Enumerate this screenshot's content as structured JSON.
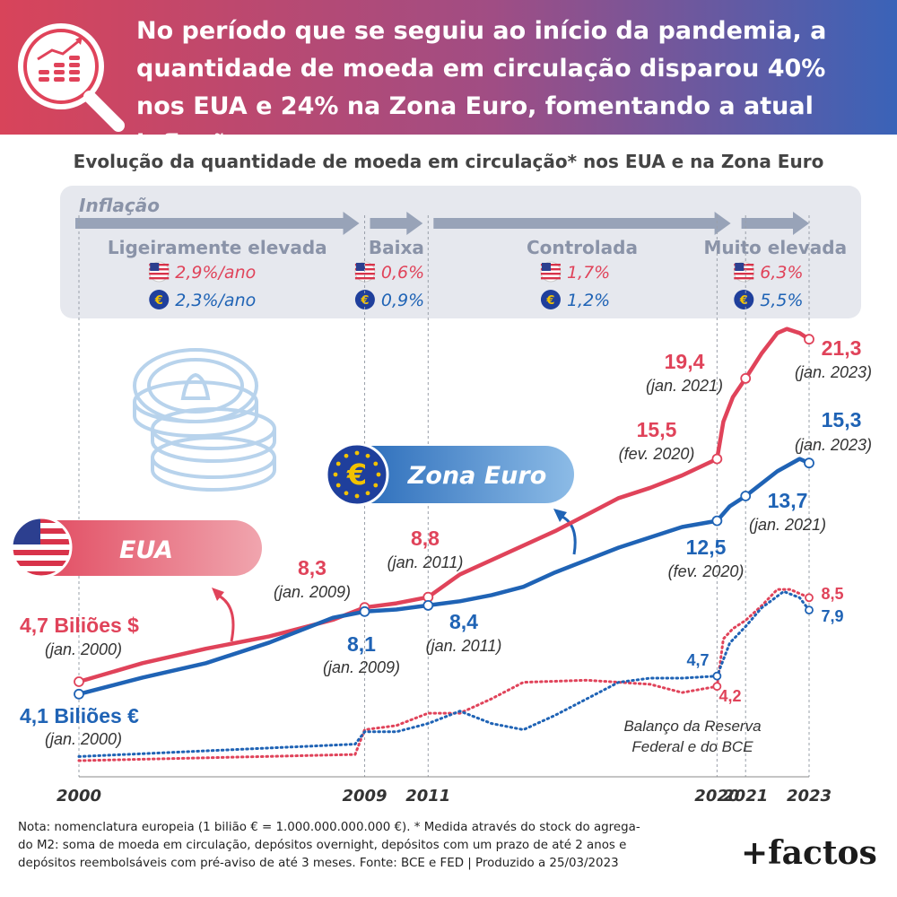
{
  "header": {
    "title": "No período que se seguiu ao início da pandemia, a quantidade de moeda em circulação disparou 40% nos EUA e 24% na Zona Euro, fomentando a atual inflação",
    "icon": "magnifier-chart-coins-icon"
  },
  "subtitle": "Evolução da quantidade de moeda em circulação* nos EUA e na Zona Euro",
  "inflation": {
    "title": "Inflação",
    "phases": [
      {
        "label": "Ligeiramente elevada",
        "us": "2,9%/ano",
        "eu": "2,3%/ano"
      },
      {
        "label": "Baixa",
        "us": "0,6%",
        "eu": "0,9%"
      },
      {
        "label": "Controlada",
        "us": "1,7%",
        "eu": "1,2%"
      },
      {
        "label": "Muito elevada",
        "us": "6,3%",
        "eu": "5,5%"
      }
    ]
  },
  "legend": {
    "us": "EUA",
    "eu": "Zona Euro"
  },
  "annotations": {
    "us_start_value": "4,7 Biliões $",
    "us_start_date": "(jan. 2000)",
    "eu_start_value": "4,1 Biliões €",
    "eu_start_date": "(jan. 2000)",
    "us_2009_value": "8,3",
    "us_2009_date": "(jan. 2009)",
    "eu_2009_value": "8,1",
    "eu_2009_date": "(jan. 2009)",
    "us_2011_value": "8,8",
    "us_2011_date": "(jan. 2011)",
    "eu_2011_value": "8,4",
    "eu_2011_date": "(jan. 2011)",
    "us_2020_value": "15,5",
    "us_2020_date": "(fev. 2020)",
    "eu_2020_value": "12,5",
    "eu_2020_date": "(fev. 2020)",
    "us_2021_value": "19,4",
    "us_2021_date": "(jan. 2021)",
    "eu_2021_value": "13,7",
    "eu_2021_date": "(jan. 2021)",
    "us_2023_value": "21,3",
    "us_2023_date": "(jan. 2023)",
    "eu_2023_value": "15,3",
    "eu_2023_date": "(jan. 2023)",
    "bal_us_2020": "4,2",
    "bal_eu_2020": "4,7",
    "bal_us_2023": "8,5",
    "bal_eu_2023": "7,9",
    "balance_label_1": "Balanço da Reserva",
    "balance_label_2": "Federal e do BCE"
  },
  "footnote_lines": [
    "Nota: nomenclatura europeia (1 bilião € = 1.000.000.000.000 €). * Medida através do stock do agrega-",
    "do M2: soma de moeda em circulação, depósitos overnight, depósitos com um prazo de até 2 anos e",
    "depósitos reembolsáveis com pré-aviso de até 3 meses. Fonte: BCE e FED | Produzido a 25/03/2023"
  ],
  "brand": "+factos",
  "colors": {
    "us": "#e0435a",
    "eu": "#1f63b5",
    "panel": "#e6e8ee",
    "arrow": "#98a3b8",
    "label": "#8a93a8"
  },
  "chart_data": {
    "type": "line",
    "title": "Evolução da quantidade de moeda em circulação* nos EUA e na Zona Euro",
    "x_ticks": [
      "2000",
      "2009",
      "2011",
      "2020",
      "2021",
      "2023"
    ],
    "series": [
      {
        "name": "EUA",
        "unit": "Biliões $",
        "points": [
          [
            2000.0,
            4.7
          ],
          [
            2002.0,
            5.6
          ],
          [
            2004.0,
            6.3
          ],
          [
            2006.0,
            6.9
          ],
          [
            2008.0,
            7.7
          ],
          [
            2009.0,
            8.3
          ],
          [
            2010.0,
            8.5
          ],
          [
            2011.0,
            8.8
          ],
          [
            2012.0,
            9.9
          ],
          [
            2013.0,
            10.6
          ],
          [
            2014.0,
            11.3
          ],
          [
            2015.0,
            12.0
          ],
          [
            2016.0,
            12.8
          ],
          [
            2017.0,
            13.6
          ],
          [
            2018.0,
            14.1
          ],
          [
            2019.0,
            14.7
          ],
          [
            2020.1,
            15.5
          ],
          [
            2020.3,
            17.3
          ],
          [
            2020.6,
            18.5
          ],
          [
            2021.0,
            19.4
          ],
          [
            2021.5,
            20.6
          ],
          [
            2022.0,
            21.6
          ],
          [
            2022.3,
            21.8
          ],
          [
            2022.7,
            21.6
          ],
          [
            2023.0,
            21.3
          ]
        ]
      },
      {
        "name": "Zona Euro",
        "unit": "Biliões €",
        "points": [
          [
            2000.0,
            4.1
          ],
          [
            2002.0,
            4.9
          ],
          [
            2004.0,
            5.6
          ],
          [
            2006.0,
            6.6
          ],
          [
            2008.0,
            7.8
          ],
          [
            2009.0,
            8.1
          ],
          [
            2010.0,
            8.2
          ],
          [
            2011.0,
            8.4
          ],
          [
            2012.0,
            8.6
          ],
          [
            2013.0,
            8.9
          ],
          [
            2014.0,
            9.3
          ],
          [
            2015.0,
            10.0
          ],
          [
            2016.0,
            10.6
          ],
          [
            2017.0,
            11.2
          ],
          [
            2018.0,
            11.7
          ],
          [
            2019.0,
            12.2
          ],
          [
            2020.1,
            12.5
          ],
          [
            2020.5,
            13.2
          ],
          [
            2021.0,
            13.7
          ],
          [
            2021.5,
            14.3
          ],
          [
            2022.0,
            14.9
          ],
          [
            2022.7,
            15.5
          ],
          [
            2023.0,
            15.3
          ]
        ]
      },
      {
        "name": "Balanço da Reserva Federal",
        "style": "dotted",
        "points": [
          [
            2000.0,
            0.6
          ],
          [
            2008.7,
            0.9
          ],
          [
            2009.0,
            2.1
          ],
          [
            2010.0,
            2.3
          ],
          [
            2011.0,
            2.9
          ],
          [
            2012.0,
            2.9
          ],
          [
            2013.0,
            3.6
          ],
          [
            2014.0,
            4.4
          ],
          [
            2016.0,
            4.5
          ],
          [
            2018.0,
            4.3
          ],
          [
            2019.0,
            3.9
          ],
          [
            2020.1,
            4.2
          ],
          [
            2020.3,
            6.5
          ],
          [
            2020.6,
            7.0
          ],
          [
            2021.0,
            7.4
          ],
          [
            2021.5,
            8.1
          ],
          [
            2022.0,
            8.9
          ],
          [
            2022.4,
            8.9
          ],
          [
            2023.0,
            8.5
          ]
        ]
      },
      {
        "name": "Balanço do BCE",
        "style": "dotted",
        "points": [
          [
            2000.0,
            0.8
          ],
          [
            2008.7,
            1.4
          ],
          [
            2009.0,
            2.0
          ],
          [
            2010.0,
            2.0
          ],
          [
            2011.0,
            2.4
          ],
          [
            2012.0,
            3.0
          ],
          [
            2013.0,
            2.4
          ],
          [
            2014.0,
            2.1
          ],
          [
            2015.0,
            2.8
          ],
          [
            2016.0,
            3.6
          ],
          [
            2017.0,
            4.4
          ],
          [
            2018.0,
            4.6
          ],
          [
            2019.0,
            4.6
          ],
          [
            2020.1,
            4.7
          ],
          [
            2020.5,
            6.3
          ],
          [
            2021.0,
            7.1
          ],
          [
            2021.5,
            8.0
          ],
          [
            2022.2,
            8.8
          ],
          [
            2022.7,
            8.5
          ],
          [
            2023.0,
            7.9
          ]
        ]
      }
    ],
    "xlabel": "",
    "ylabel": "",
    "grid": false
  }
}
